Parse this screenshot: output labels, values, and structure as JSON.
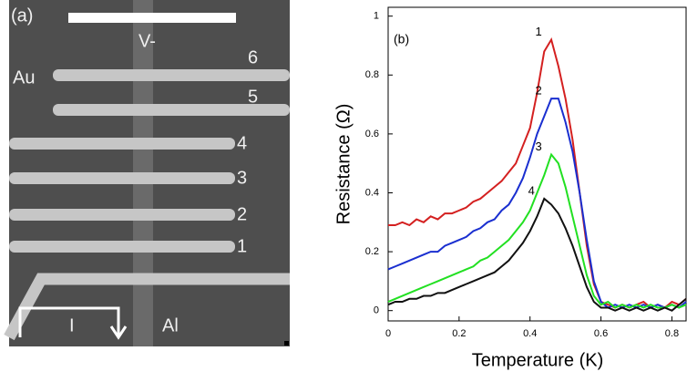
{
  "image_panel": {
    "label": "(a)",
    "probe": "V-",
    "lead": "Au",
    "wire_labels": [
      "6",
      "5",
      "4",
      "3",
      "2",
      "1"
    ],
    "current": "I",
    "film": "Al"
  },
  "chart_data": {
    "type": "line",
    "annotation": "(b)",
    "x_label": "Temperature (K)",
    "y_label": "Resistance (Ω)",
    "xlim": [
      0,
      0.84
    ],
    "ylim": [
      -0.035,
      1.03
    ],
    "xticks": [
      0,
      0.2,
      0.4,
      0.6,
      0.8
    ],
    "yticks": [
      0,
      0.2,
      0.4,
      0.6,
      0.8,
      1
    ],
    "x": [
      0,
      0.02,
      0.04,
      0.06,
      0.08,
      0.1,
      0.12,
      0.14,
      0.16,
      0.18,
      0.2,
      0.22,
      0.24,
      0.26,
      0.28,
      0.3,
      0.32,
      0.34,
      0.36,
      0.38,
      0.4,
      0.42,
      0.44,
      0.46,
      0.48,
      0.5,
      0.52,
      0.54,
      0.56,
      0.58,
      0.6,
      0.62,
      0.64,
      0.66,
      0.68,
      0.7,
      0.72,
      0.74,
      0.76,
      0.78,
      0.8,
      0.82,
      0.84
    ],
    "series": [
      {
        "name": "1",
        "color": "#d42020",
        "values": [
          0.29,
          0.29,
          0.3,
          0.29,
          0.31,
          0.3,
          0.32,
          0.31,
          0.33,
          0.33,
          0.34,
          0.35,
          0.37,
          0.38,
          0.4,
          0.42,
          0.44,
          0.47,
          0.5,
          0.56,
          0.62,
          0.74,
          0.88,
          0.92,
          0.83,
          0.72,
          0.58,
          0.4,
          0.22,
          0.09,
          0.03,
          0.02,
          0.01,
          0.02,
          0.01,
          0.02,
          0.03,
          0.01,
          0.02,
          0.01,
          0.03,
          0.02,
          0.04
        ]
      },
      {
        "name": "2",
        "color": "#1a2fd0",
        "values": [
          0.14,
          0.15,
          0.16,
          0.17,
          0.18,
          0.19,
          0.2,
          0.2,
          0.22,
          0.23,
          0.24,
          0.25,
          0.27,
          0.28,
          0.3,
          0.31,
          0.34,
          0.36,
          0.4,
          0.45,
          0.52,
          0.6,
          0.66,
          0.72,
          0.72,
          0.64,
          0.54,
          0.4,
          0.24,
          0.1,
          0.03,
          0.01,
          0.02,
          0.01,
          0.02,
          0.01,
          0.02,
          0.01,
          0.02,
          0.01,
          0.02,
          0.01,
          0.03
        ]
      },
      {
        "name": "3",
        "color": "#22e022",
        "values": [
          0.03,
          0.04,
          0.05,
          0.06,
          0.07,
          0.08,
          0.09,
          0.1,
          0.11,
          0.12,
          0.13,
          0.14,
          0.15,
          0.17,
          0.18,
          0.2,
          0.22,
          0.24,
          0.27,
          0.3,
          0.34,
          0.4,
          0.46,
          0.53,
          0.5,
          0.42,
          0.32,
          0.22,
          0.12,
          0.05,
          0.02,
          0.03,
          0.01,
          0.02,
          0.01,
          0.02,
          0.01,
          0.02,
          0.01,
          0.01,
          0.02,
          0.01,
          0.02
        ]
      },
      {
        "name": "4",
        "color": "#111111",
        "values": [
          0.02,
          0.03,
          0.03,
          0.04,
          0.04,
          0.05,
          0.05,
          0.06,
          0.06,
          0.07,
          0.08,
          0.09,
          0.1,
          0.11,
          0.12,
          0.13,
          0.15,
          0.17,
          0.2,
          0.23,
          0.27,
          0.32,
          0.38,
          0.36,
          0.33,
          0.28,
          0.22,
          0.15,
          0.08,
          0.03,
          0.01,
          0.01,
          0.0,
          0.01,
          0.0,
          0.01,
          0.0,
          0.01,
          0.0,
          0.01,
          0.0,
          0.02,
          0.04
        ]
      }
    ]
  }
}
